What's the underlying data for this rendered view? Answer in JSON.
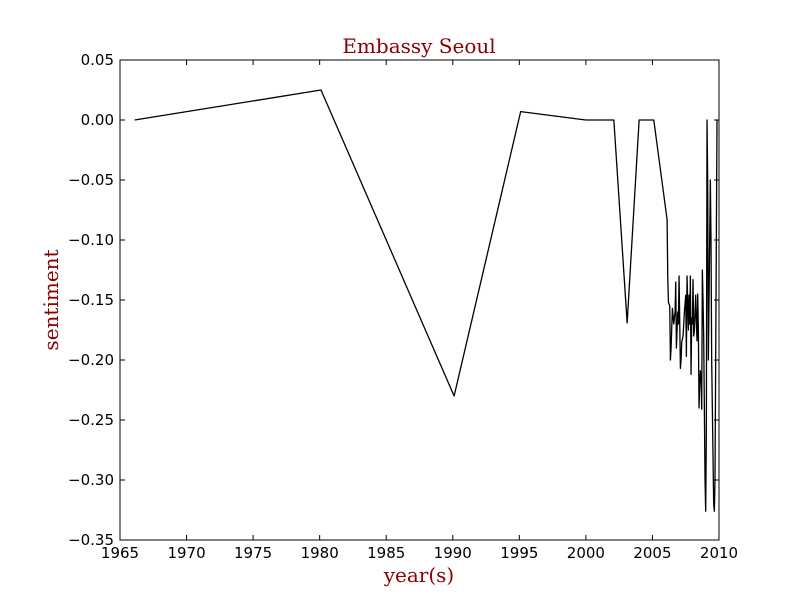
{
  "chart_data": {
    "type": "line",
    "title": "Embassy Seoul",
    "xlabel": "year(s)",
    "ylabel": "sentiment",
    "xlim": [
      1965,
      2010
    ],
    "ylim": [
      -0.35,
      0.05
    ],
    "xticks": [
      1965,
      1970,
      1975,
      1980,
      1985,
      1990,
      1995,
      2000,
      2005,
      2010
    ],
    "xtick_labels": [
      "1965",
      "1970",
      "1975",
      "1980",
      "1985",
      "1990",
      "1995",
      "2000",
      "2005",
      "2010"
    ],
    "yticks": [
      0.05,
      0.0,
      -0.05,
      -0.1,
      -0.15,
      -0.2,
      -0.25,
      -0.3,
      -0.35
    ],
    "ytick_labels": [
      "0.05",
      "0.00",
      "−0.05",
      "−0.10",
      "−0.15",
      "−0.20",
      "−0.25",
      "−0.30",
      "−0.35"
    ],
    "grid": false,
    "label_color": "#8b0000",
    "line_color": "#000000",
    "series": [
      {
        "x": [
          1966.1,
          1980.1,
          1990.1,
          1995.1,
          2000.0,
          2002.1,
          2003.1,
          2004.0,
          2005.1,
          2006.1,
          2006.15,
          2006.2,
          2006.3,
          2006.35,
          2006.4,
          2006.5,
          2006.6,
          2006.7,
          2006.75,
          2006.8,
          2006.9,
          2006.95,
          2007.0,
          2007.1,
          2007.15,
          2007.2,
          2007.3,
          2007.35,
          2007.4,
          2007.5,
          2007.55,
          2007.6,
          2007.7,
          2007.75,
          2007.8,
          2007.85,
          2007.9,
          2007.95,
          2008.0,
          2008.05,
          2008.1,
          2008.15,
          2008.2,
          2008.25,
          2008.3,
          2008.35,
          2008.4,
          2008.45,
          2008.5,
          2008.55,
          2008.6,
          2008.65,
          2008.7,
          2008.75,
          2008.8,
          2008.85,
          2008.9,
          2008.95,
          2009.0,
          2009.05,
          2009.1,
          2009.15,
          2009.2,
          2009.25,
          2009.3,
          2009.35,
          2009.4,
          2009.45,
          2009.5,
          2009.55,
          2009.6,
          2009.65,
          2009.7,
          2009.75,
          2009.8,
          2009.85,
          2009.9
        ],
        "y": [
          0.0,
          0.025,
          -0.23,
          0.007,
          0.0,
          0.0,
          -0.169,
          0.0,
          0.0,
          -0.083,
          -0.13,
          -0.152,
          -0.155,
          -0.2,
          -0.19,
          -0.157,
          -0.17,
          -0.16,
          -0.135,
          -0.19,
          -0.16,
          -0.17,
          -0.13,
          -0.207,
          -0.2,
          -0.185,
          -0.18,
          -0.17,
          -0.16,
          -0.146,
          -0.197,
          -0.13,
          -0.175,
          -0.146,
          -0.17,
          -0.13,
          -0.212,
          -0.165,
          -0.17,
          -0.133,
          -0.18,
          -0.175,
          -0.16,
          -0.146,
          -0.17,
          -0.184,
          -0.145,
          -0.175,
          -0.24,
          -0.22,
          -0.209,
          -0.215,
          -0.241,
          -0.125,
          -0.15,
          -0.18,
          -0.24,
          -0.3,
          -0.326,
          -0.26,
          0.0,
          -0.05,
          -0.2,
          -0.15,
          -0.1,
          -0.05,
          -0.1,
          -0.2,
          -0.24,
          -0.28,
          -0.32,
          -0.326,
          -0.3,
          -0.2,
          -0.1,
          0.0,
          0.0
        ]
      }
    ]
  }
}
